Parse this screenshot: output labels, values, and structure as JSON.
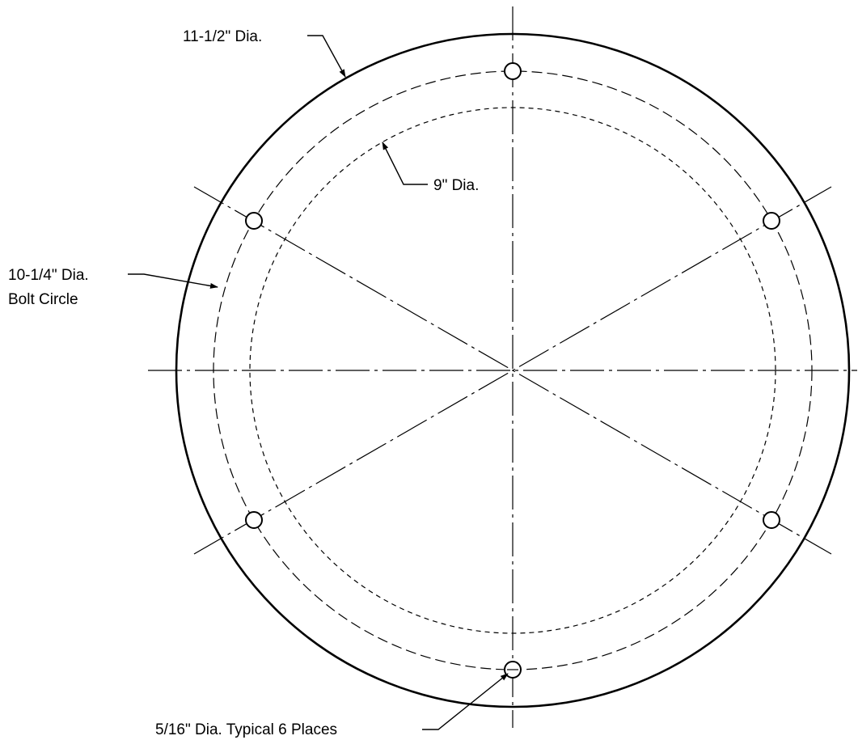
{
  "labels": {
    "outer_diameter": "11-1/2\" Dia.",
    "inner_diameter": "9\" Dia.",
    "bolt_circle_line1": "10-1/4\" Dia.",
    "bolt_circle_line2": "Bolt Circle",
    "hole_note": "5/16\" Dia. Typical 6 Places"
  },
  "colors": {
    "line": "#000000",
    "background": "#ffffff"
  }
}
